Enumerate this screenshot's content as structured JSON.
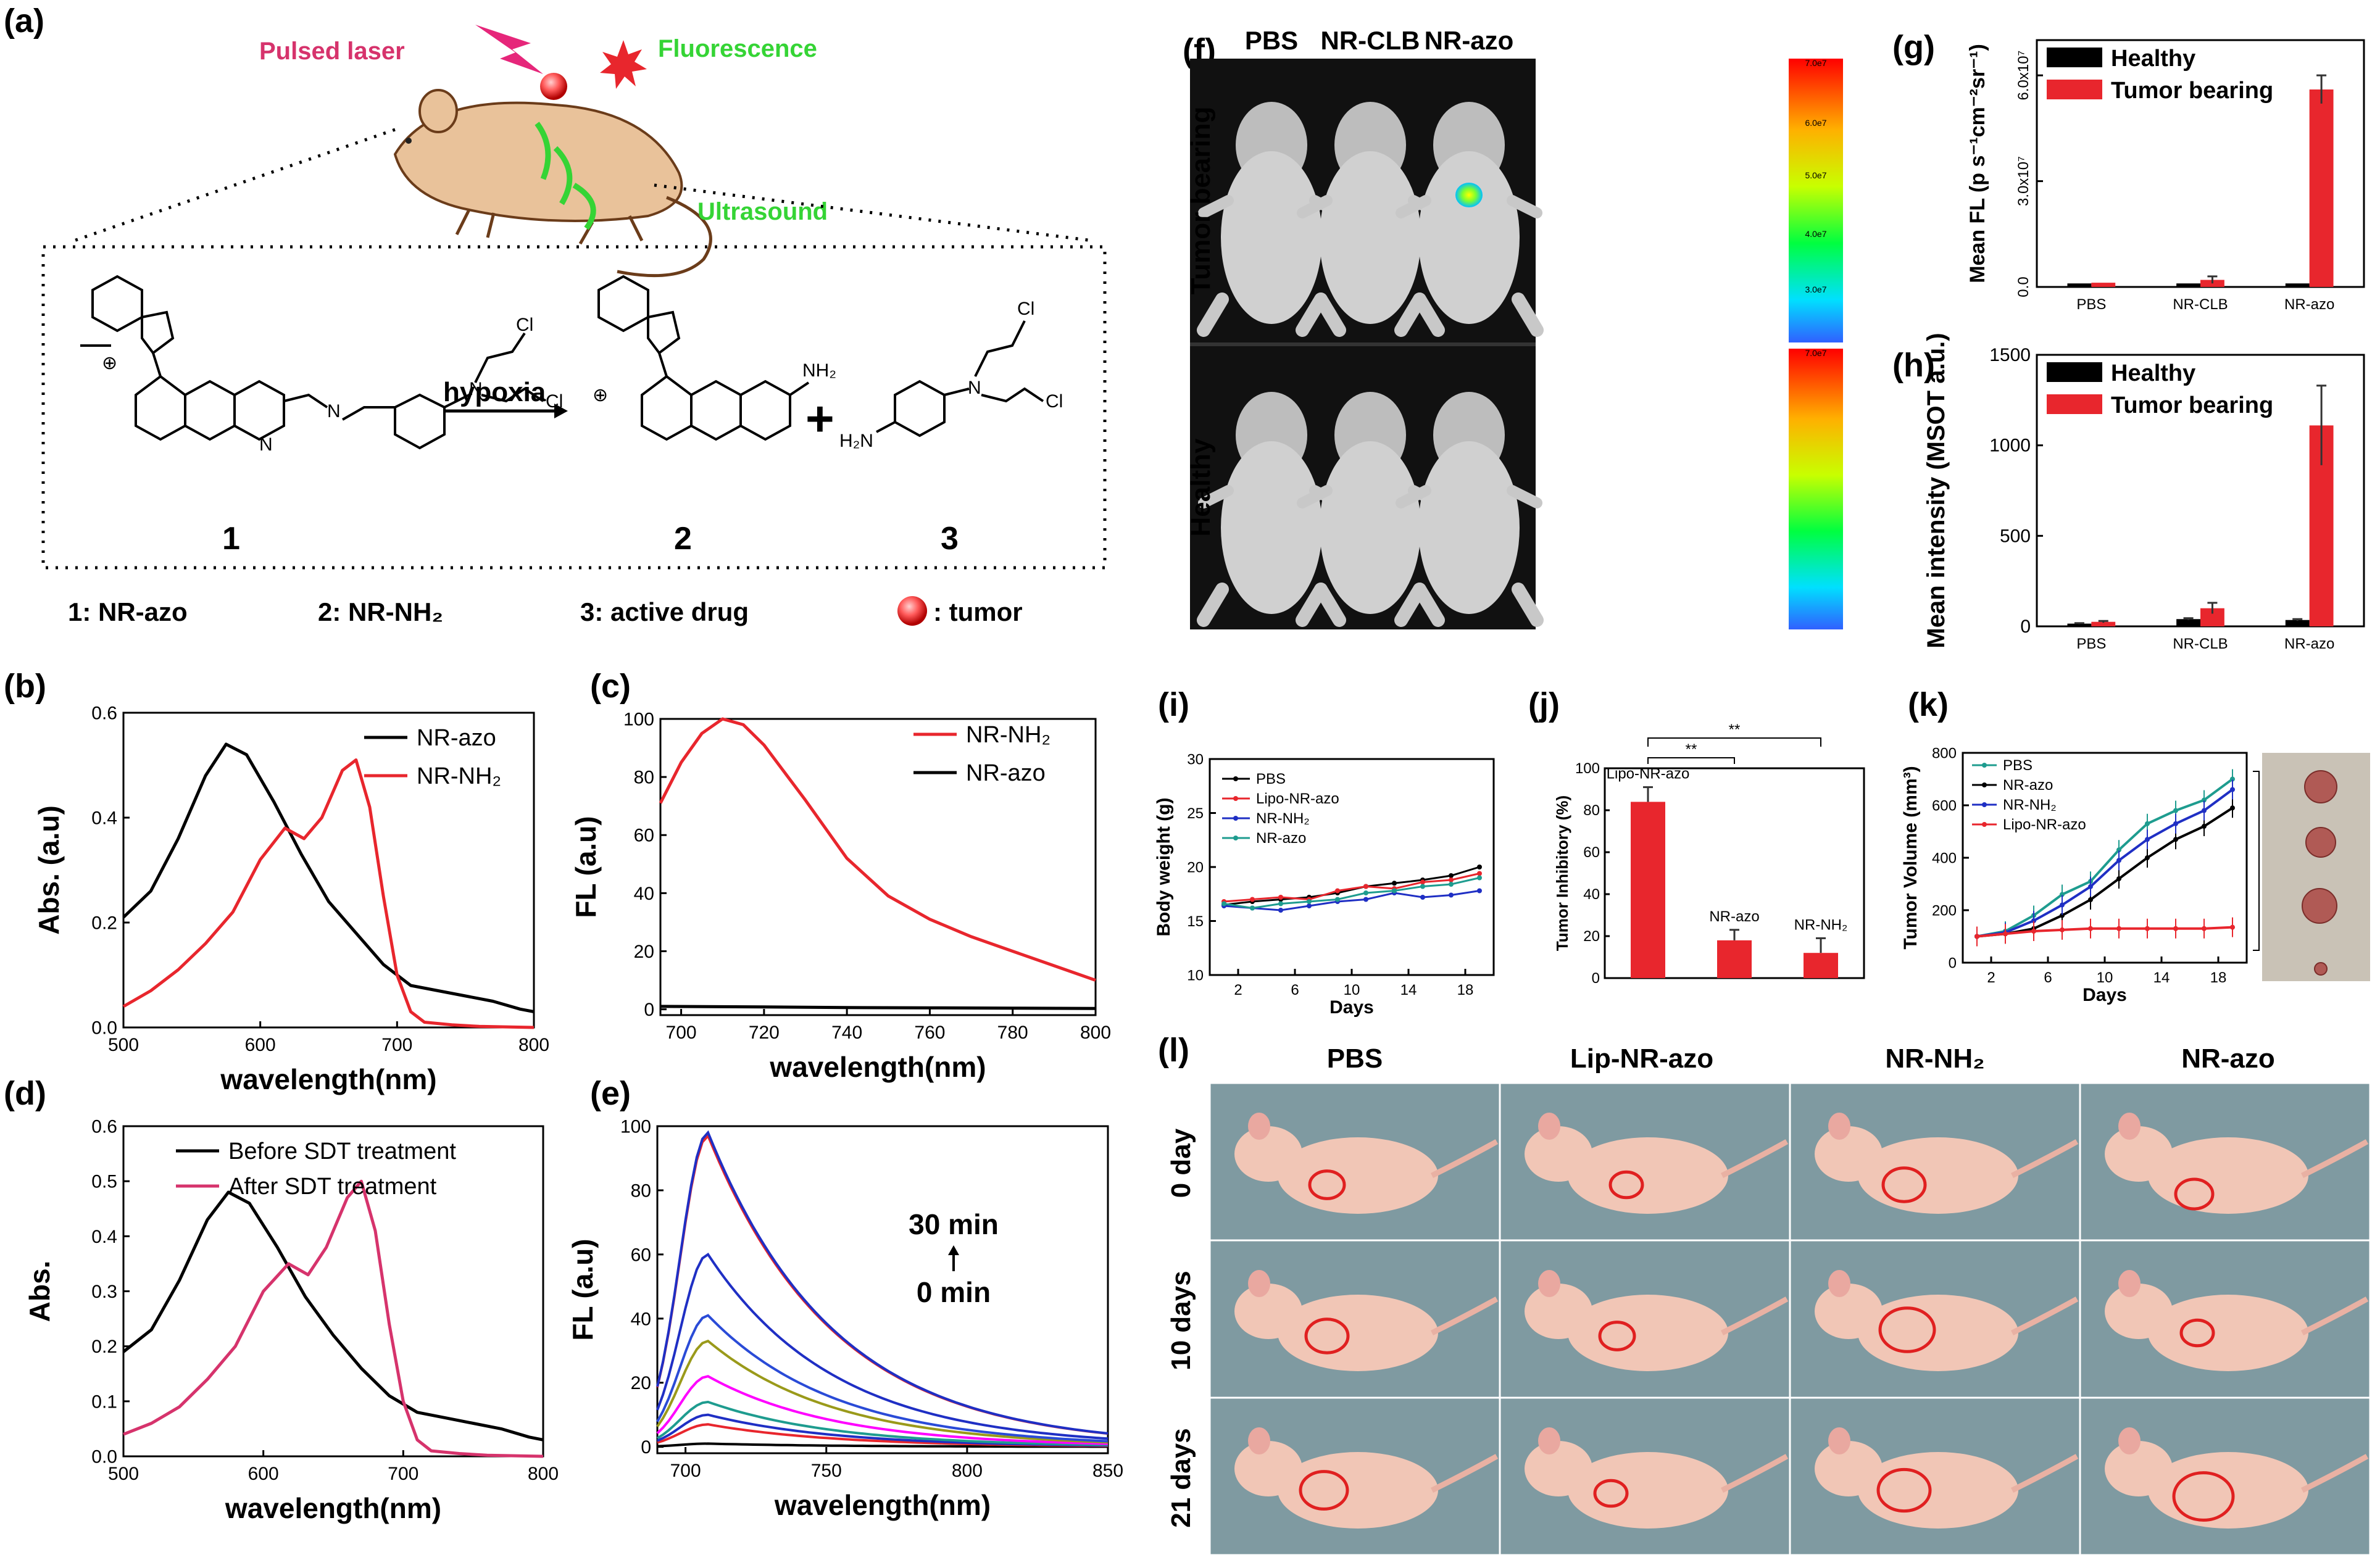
{
  "panel_labels": [
    "(a)",
    "(b)",
    "(c)",
    "(d)",
    "(e)",
    "(f)",
    "(g)",
    "(h)",
    "(i)",
    "(j)",
    "(k)",
    "(l)"
  ],
  "scheme": {
    "pulsed_laser": "Pulsed laser",
    "fluorescence": "Fluorescence",
    "ultrasound": "Ultrasound",
    "hypoxia": "hypoxia",
    "plus": "+",
    "compound_numbers": [
      "1",
      "2",
      "3"
    ],
    "legend": [
      "1:  NR-azo",
      "2:  NR-NH₂",
      "3:  active drug",
      ":  tumor"
    ],
    "atoms": {
      "cl": "Cl",
      "n": "N",
      "nh2": "NH₂",
      "h2n": "H₂N",
      "plus": "⊕"
    }
  },
  "colors": {
    "black": "#000000",
    "red": "#e8262d",
    "pink": "#d6336c",
    "green": "#35d435",
    "blue": "#1f2fc4",
    "teal": "#1e9c8f"
  },
  "chart_data": [
    {
      "id": "b",
      "type": "line",
      "xlabel": "wavelength(nm)",
      "ylabel": "Abs. (a.u)",
      "xlim": [
        500,
        800
      ],
      "ylim": [
        0,
        0.6
      ],
      "xticks": [
        500,
        600,
        700,
        800
      ],
      "yticks": [
        0.0,
        0.2,
        0.4,
        0.6
      ],
      "legend_position": "top-right",
      "series": [
        {
          "name": "NR-azo",
          "color": "#000000",
          "x": [
            500,
            520,
            540,
            560,
            575,
            590,
            610,
            630,
            650,
            670,
            690,
            710,
            730,
            750,
            770,
            790,
            800
          ],
          "y": [
            0.21,
            0.26,
            0.36,
            0.48,
            0.54,
            0.52,
            0.43,
            0.33,
            0.24,
            0.18,
            0.12,
            0.08,
            0.07,
            0.06,
            0.05,
            0.035,
            0.03
          ]
        },
        {
          "name": "NR-NH₂",
          "color": "#e8262d",
          "x": [
            500,
            520,
            540,
            560,
            580,
            600,
            618,
            632,
            645,
            660,
            670,
            680,
            690,
            700,
            710,
            720,
            740,
            760,
            800
          ],
          "y": [
            0.04,
            0.07,
            0.11,
            0.16,
            0.22,
            0.32,
            0.38,
            0.36,
            0.4,
            0.49,
            0.51,
            0.42,
            0.25,
            0.1,
            0.03,
            0.01,
            0.005,
            0.002,
            0.0
          ]
        }
      ]
    },
    {
      "id": "c",
      "type": "line",
      "xlabel": "wavelength(nm)",
      "ylabel": "FL (a.u)",
      "xlim": [
        695,
        800
      ],
      "ylim": [
        -2,
        100
      ],
      "xticks": [
        700,
        720,
        740,
        760,
        780,
        800
      ],
      "yticks": [
        0,
        20,
        40,
        60,
        80,
        100
      ],
      "legend_position": "top-right",
      "series": [
        {
          "name": "NR-NH₂",
          "color": "#e8262d",
          "x": [
            695,
            700,
            705,
            710,
            715,
            720,
            730,
            740,
            750,
            760,
            770,
            780,
            790,
            800
          ],
          "y": [
            71,
            85,
            95,
            100,
            98,
            91,
            72,
            52,
            39,
            31,
            25,
            20,
            15,
            10
          ]
        },
        {
          "name": "NR-azo",
          "color": "#000000",
          "x": [
            695,
            720,
            740,
            760,
            780,
            800
          ],
          "y": [
            1,
            0.8,
            0.6,
            0.5,
            0.4,
            0.3
          ]
        }
      ]
    },
    {
      "id": "d",
      "type": "line",
      "xlabel": "wavelength(nm)",
      "ylabel": "Abs.",
      "xlim": [
        500,
        800
      ],
      "ylim": [
        0,
        0.6
      ],
      "xticks": [
        500,
        600,
        700,
        800
      ],
      "yticks": [
        0.0,
        0.1,
        0.2,
        0.3,
        0.4,
        0.5,
        0.6
      ],
      "legend_position": "top",
      "series": [
        {
          "name": "Before SDT treatment",
          "color": "#000000",
          "x": [
            500,
            520,
            540,
            560,
            575,
            590,
            610,
            630,
            650,
            670,
            690,
            710,
            730,
            750,
            770,
            790,
            800
          ],
          "y": [
            0.19,
            0.23,
            0.32,
            0.43,
            0.48,
            0.46,
            0.38,
            0.29,
            0.22,
            0.16,
            0.11,
            0.08,
            0.07,
            0.06,
            0.05,
            0.035,
            0.03
          ]
        },
        {
          "name": "After SDT treatment",
          "color": "#d6336c",
          "x": [
            500,
            520,
            540,
            560,
            580,
            600,
            618,
            632,
            645,
            660,
            670,
            680,
            690,
            700,
            710,
            720,
            740,
            760,
            800
          ],
          "y": [
            0.04,
            0.06,
            0.09,
            0.14,
            0.2,
            0.3,
            0.35,
            0.33,
            0.38,
            0.47,
            0.5,
            0.41,
            0.24,
            0.1,
            0.03,
            0.01,
            0.005,
            0.002,
            0.0
          ]
        }
      ]
    },
    {
      "id": "e",
      "type": "line",
      "xlabel": "wavelength(nm)",
      "ylabel": "FL (a.u)",
      "xlim": [
        690,
        850
      ],
      "ylim": [
        -2,
        100
      ],
      "xticks": [
        700,
        750,
        800,
        850
      ],
      "yticks": [
        0,
        20,
        40,
        60,
        80,
        100
      ],
      "annotations": [
        "30 min",
        "0 min"
      ],
      "peak_x": 708,
      "series": [
        {
          "color": "#000000",
          "peak": 1
        },
        {
          "color": "#e8262d",
          "peak": 7
        },
        {
          "color": "#1f2fc4",
          "peak": 10
        },
        {
          "color": "#1e9c8f",
          "peak": 14
        },
        {
          "color": "#ff00ff",
          "peak": 22
        },
        {
          "color": "#9a9a1a",
          "peak": 33
        },
        {
          "color": "#2a4bd7",
          "peak": 41
        },
        {
          "color": "#1f2fc4",
          "peak": 60
        },
        {
          "color": "#e8262d",
          "peak": 97
        },
        {
          "color": "#1f2fc4",
          "peak": 98
        }
      ]
    },
    {
      "id": "g",
      "type": "bar",
      "ylabel": "Mean FL (p s⁻¹cm⁻²sr⁻¹)",
      "categories": [
        "PBS",
        "NR-CLB",
        "NR-azo"
      ],
      "ylim": [
        0,
        70000000.0
      ],
      "yticks": [
        0.0,
        30000000.0,
        60000000.0
      ],
      "ytick_labels": [
        "0.0",
        "3.0x10⁷",
        "6.0x10⁷"
      ],
      "legend_position": "top-left",
      "series": [
        {
          "name": "Healthy",
          "color": "#000000",
          "values": [
            1000000.0,
            1000000.0,
            1000000.0
          ],
          "errors": [
            0,
            0,
            0
          ]
        },
        {
          "name": "Tumor bearing",
          "color": "#e8262d",
          "values": [
            1200000.0,
            2000000.0,
            56000000.0
          ],
          "errors": [
            0,
            1000000.0,
            4000000.0
          ]
        }
      ]
    },
    {
      "id": "h",
      "type": "bar",
      "ylabel": "Mean intensity (MSOT a.u.)",
      "categories": [
        "PBS",
        "NR-CLB",
        "NR-azo"
      ],
      "ylim": [
        0,
        1500
      ],
      "yticks": [
        0,
        500,
        1000,
        1500
      ],
      "legend_position": "top-left",
      "series": [
        {
          "name": "Healthy",
          "color": "#000000",
          "values": [
            15,
            40,
            35
          ],
          "errors": [
            3,
            5,
            5
          ]
        },
        {
          "name": "Tumor bearing",
          "color": "#e8262d",
          "values": [
            25,
            100,
            1110
          ],
          "errors": [
            5,
            30,
            220
          ]
        }
      ]
    },
    {
      "id": "i",
      "type": "line",
      "xlabel": "Days",
      "ylabel": "Body weight (g)",
      "xlim": [
        0,
        20
      ],
      "ylim": [
        10,
        30
      ],
      "xticks": [
        2,
        6,
        10,
        14,
        18
      ],
      "yticks": [
        10,
        15,
        20,
        25,
        30
      ],
      "legend_position": "top-left",
      "x": [
        1,
        3,
        5,
        7,
        9,
        11,
        13,
        15,
        17,
        19
      ],
      "series": [
        {
          "name": "PBS",
          "color": "#000000",
          "values": [
            16.5,
            16.8,
            17.0,
            17.2,
            17.6,
            18.2,
            18.5,
            18.8,
            19.2,
            20.0
          ]
        },
        {
          "name": "Lipo-NR-azo",
          "color": "#e8262d",
          "values": [
            16.8,
            17.0,
            17.2,
            17.0,
            17.8,
            18.2,
            18.0,
            18.6,
            18.8,
            19.4
          ]
        },
        {
          "name": "NR-NH₂",
          "color": "#1f2fc4",
          "values": [
            16.4,
            16.2,
            16.0,
            16.4,
            16.8,
            17.0,
            17.6,
            17.2,
            17.4,
            17.8
          ]
        },
        {
          "name": "NR-azo",
          "color": "#1e9c8f",
          "values": [
            16.6,
            16.2,
            16.6,
            16.8,
            17.0,
            17.6,
            17.8,
            18.2,
            18.4,
            19.0
          ]
        }
      ]
    },
    {
      "id": "j",
      "type": "bar",
      "ylabel": "Tumor Inhibitory (%)",
      "categories": [
        "Lipo-NR-azo",
        "NR-azo",
        "NR-NH₂"
      ],
      "ylim": [
        0,
        100
      ],
      "yticks": [
        0,
        20,
        40,
        60,
        80,
        100
      ],
      "values": [
        84,
        18,
        12
      ],
      "errors": [
        7,
        5,
        7
      ],
      "color": "#e8262d",
      "significance": [
        "**",
        "**"
      ]
    },
    {
      "id": "k",
      "type": "line",
      "xlabel": "Days",
      "ylabel": "Tumor Volume (mm³)",
      "xlim": [
        0,
        20
      ],
      "ylim": [
        0,
        800
      ],
      "xticks": [
        2,
        6,
        10,
        14,
        18
      ],
      "yticks": [
        0,
        200,
        400,
        600,
        800
      ],
      "legend_position": "top-left",
      "significance": "**",
      "x": [
        1,
        3,
        5,
        7,
        9,
        11,
        13,
        15,
        17,
        19
      ],
      "series": [
        {
          "name": "PBS",
          "color": "#1e9c8f",
          "values": [
            100,
            120,
            180,
            260,
            310,
            430,
            530,
            580,
            620,
            700
          ]
        },
        {
          "name": "NR-azo",
          "color": "#000000",
          "values": [
            100,
            110,
            130,
            180,
            240,
            320,
            400,
            470,
            520,
            590
          ]
        },
        {
          "name": "NR-NH₂",
          "color": "#1f2fc4",
          "values": [
            100,
            115,
            160,
            220,
            290,
            390,
            470,
            530,
            580,
            660
          ]
        },
        {
          "name": "Lipo-NR-azo",
          "color": "#e8262d",
          "values": [
            100,
            110,
            120,
            125,
            130,
            130,
            130,
            130,
            130,
            135
          ]
        }
      ]
    }
  ],
  "imaging": {
    "columns": [
      "PBS",
      "NR-CLB",
      "NR-azo"
    ],
    "rows": [
      "Tumor bearing",
      "Healthy"
    ],
    "colorbar_labels": [
      "7.0e7",
      "6.0e7",
      "5.0e7",
      "4.0e7",
      "3.0e7",
      "7.0e7"
    ]
  },
  "photos": {
    "columns": [
      "PBS",
      "Lip-NR-azo",
      "NR-NH₂",
      "NR-azo"
    ],
    "rows": [
      "0 day",
      "10 days",
      "21 days"
    ]
  }
}
